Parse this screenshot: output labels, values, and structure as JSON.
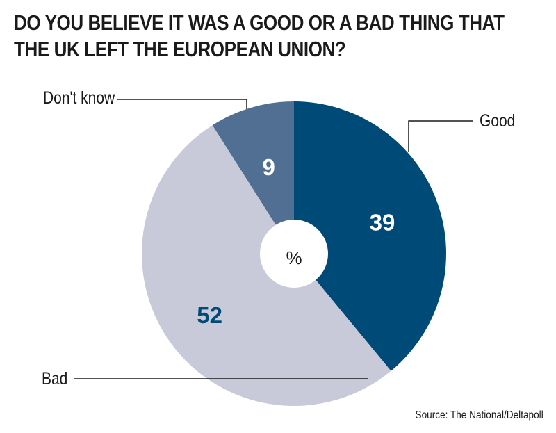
{
  "title": "DO YOU BELIEVE IT WAS A GOOD OR A BAD THING THAT THE UK LEFT THE EUROPEAN UNION?",
  "source": "Source: The National/Deltapoll",
  "chart_data": {
    "type": "pie",
    "title": "DO YOU BELIEVE IT WAS A GOOD OR A BAD THING THAT THE UK LEFT THE EUROPEAN UNION?",
    "center_label": "%",
    "slices": [
      {
        "label": "Good",
        "value": 39,
        "color": "#004a78",
        "value_color": "#ffffff"
      },
      {
        "label": "Bad",
        "value": 52,
        "color": "#c8cad9",
        "value_color": "#004a78"
      },
      {
        "label": "Don't know",
        "value": 9,
        "color": "#506f93",
        "value_color": "#ffffff"
      }
    ]
  }
}
